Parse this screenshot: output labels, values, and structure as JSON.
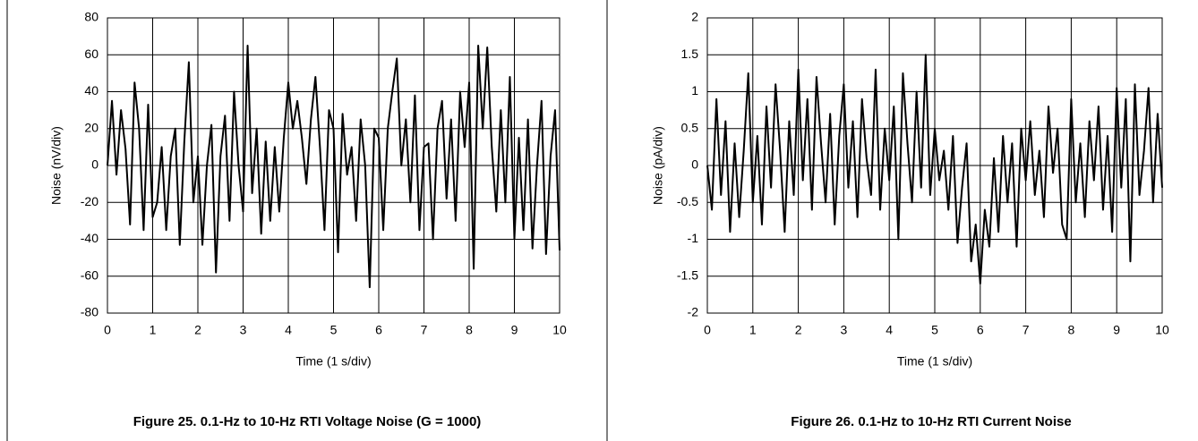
{
  "chart_data": [
    {
      "type": "line",
      "caption": "Figure 25. 0.1-Hz to 10-Hz RTI Voltage Noise (G = 1000)",
      "x_label": "Time (1 s/div)",
      "y_label": "Noise (nV/div)",
      "color": "#000000",
      "grid": true,
      "xlim": [
        0,
        10
      ],
      "xticks": [
        0,
        1,
        2,
        3,
        4,
        5,
        6,
        7,
        8,
        9,
        10
      ],
      "ylim": [
        -80,
        80
      ],
      "yticks": [
        -80,
        -60,
        -40,
        -20,
        0,
        20,
        40,
        60,
        80
      ],
      "x": [
        0,
        0.1,
        0.2,
        0.3,
        0.4,
        0.5,
        0.6,
        0.7,
        0.8,
        0.9,
        1,
        1.1,
        1.2,
        1.3,
        1.4,
        1.5,
        1.6,
        1.7,
        1.8,
        1.9,
        2,
        2.1,
        2.2,
        2.3,
        2.4,
        2.5,
        2.6,
        2.7,
        2.8,
        2.9,
        3,
        3.1,
        3.2,
        3.3,
        3.4,
        3.5,
        3.6,
        3.7,
        3.8,
        3.9,
        4,
        4.1,
        4.2,
        4.3,
        4.4,
        4.5,
        4.6,
        4.7,
        4.8,
        4.9,
        5,
        5.1,
        5.2,
        5.3,
        5.4,
        5.5,
        5.6,
        5.7,
        5.8,
        5.9,
        6,
        6.1,
        6.2,
        6.3,
        6.4,
        6.5,
        6.6,
        6.7,
        6.8,
        6.9,
        7,
        7.1,
        7.2,
        7.3,
        7.4,
        7.5,
        7.6,
        7.7,
        7.8,
        7.9,
        8,
        8.1,
        8.2,
        8.3,
        8.4,
        8.5,
        8.6,
        8.7,
        8.8,
        8.9,
        9,
        9.1,
        9.2,
        9.3,
        9.4,
        9.5,
        9.6,
        9.7,
        9.8,
        9.9,
        10
      ],
      "values": [
        0,
        35,
        -5,
        30,
        9,
        -32,
        45,
        20,
        -35,
        33,
        -28,
        -20,
        10,
        -35,
        5,
        20,
        -43,
        13,
        56,
        -20,
        5,
        -43,
        0,
        22,
        -58,
        5,
        27,
        -30,
        40,
        0,
        -25,
        65,
        -15,
        20,
        -37,
        13,
        -30,
        10,
        -25,
        15,
        45,
        20,
        35,
        15,
        -10,
        25,
        48,
        10,
        -35,
        30,
        20,
        -47,
        28,
        -5,
        10,
        -30,
        25,
        0,
        -66,
        20,
        15,
        -35,
        20,
        40,
        58,
        0,
        25,
        -20,
        38,
        -35,
        10,
        12,
        -40,
        20,
        35,
        -18,
        25,
        -30,
        40,
        10,
        45,
        -56,
        65,
        20,
        64,
        10,
        -25,
        30,
        -20,
        48,
        -40,
        15,
        -35,
        25,
        -45,
        0,
        35,
        -48,
        5,
        30,
        -46
      ]
    },
    {
      "type": "line",
      "caption": "Figure 26. 0.1-Hz to 10-Hz RTI Current Noise",
      "x_label": "Time (1 s/div)",
      "y_label": "Noise (pA/div)",
      "color": "#000000",
      "grid": true,
      "xlim": [
        0,
        10
      ],
      "xticks": [
        0,
        1,
        2,
        3,
        4,
        5,
        6,
        7,
        8,
        9,
        10
      ],
      "ylim": [
        -2,
        2
      ],
      "yticks": [
        -2,
        -1.5,
        -1,
        -0.5,
        0,
        0.5,
        1,
        1.5,
        2
      ],
      "x": [
        0,
        0.1,
        0.2,
        0.3,
        0.4,
        0.5,
        0.6,
        0.7,
        0.8,
        0.9,
        1,
        1.1,
        1.2,
        1.3,
        1.4,
        1.5,
        1.6,
        1.7,
        1.8,
        1.9,
        2,
        2.1,
        2.2,
        2.3,
        2.4,
        2.5,
        2.6,
        2.7,
        2.8,
        2.9,
        3,
        3.1,
        3.2,
        3.3,
        3.4,
        3.5,
        3.6,
        3.7,
        3.8,
        3.9,
        4,
        4.1,
        4.2,
        4.3,
        4.4,
        4.5,
        4.6,
        4.7,
        4.8,
        4.9,
        5,
        5.1,
        5.2,
        5.3,
        5.4,
        5.5,
        5.6,
        5.7,
        5.8,
        5.9,
        6,
        6.1,
        6.2,
        6.3,
        6.4,
        6.5,
        6.6,
        6.7,
        6.8,
        6.9,
        7,
        7.1,
        7.2,
        7.3,
        7.4,
        7.5,
        7.6,
        7.7,
        7.8,
        7.9,
        8,
        8.1,
        8.2,
        8.3,
        8.4,
        8.5,
        8.6,
        8.7,
        8.8,
        8.9,
        9,
        9.1,
        9.2,
        9.3,
        9.4,
        9.5,
        9.6,
        9.7,
        9.8,
        9.9,
        10
      ],
      "values": [
        0,
        -0.6,
        0.9,
        -0.4,
        0.6,
        -0.9,
        0.3,
        -0.7,
        0.2,
        1.25,
        -0.5,
        0.4,
        -0.8,
        0.8,
        -0.3,
        1.1,
        0.2,
        -0.9,
        0.6,
        -0.4,
        1.3,
        -0.2,
        0.9,
        -0.6,
        1.2,
        0.3,
        -0.5,
        0.7,
        -0.8,
        0.4,
        1.1,
        -0.3,
        0.6,
        -0.7,
        0.9,
        0.1,
        -0.4,
        1.3,
        -0.6,
        0.5,
        -0.2,
        0.8,
        -1.0,
        1.25,
        0.3,
        -0.5,
        1.0,
        -0.3,
        1.5,
        -0.4,
        0.5,
        -0.2,
        0.2,
        -0.6,
        0.4,
        -1.05,
        -0.3,
        0.3,
        -1.3,
        -0.8,
        -1.6,
        -0.6,
        -1.1,
        0.1,
        -0.9,
        0.4,
        -0.5,
        0.3,
        -1.1,
        0.5,
        -0.2,
        0.6,
        -0.4,
        0.2,
        -0.7,
        0.8,
        -0.1,
        0.5,
        -0.8,
        -1.0,
        0.9,
        -0.5,
        0.3,
        -0.7,
        0.6,
        -0.2,
        0.8,
        -0.6,
        0.4,
        -0.9,
        1.05,
        -0.3,
        0.9,
        -1.3,
        1.1,
        -0.4,
        0.2,
        1.05,
        -0.5,
        0.7,
        -0.3
      ]
    }
  ]
}
